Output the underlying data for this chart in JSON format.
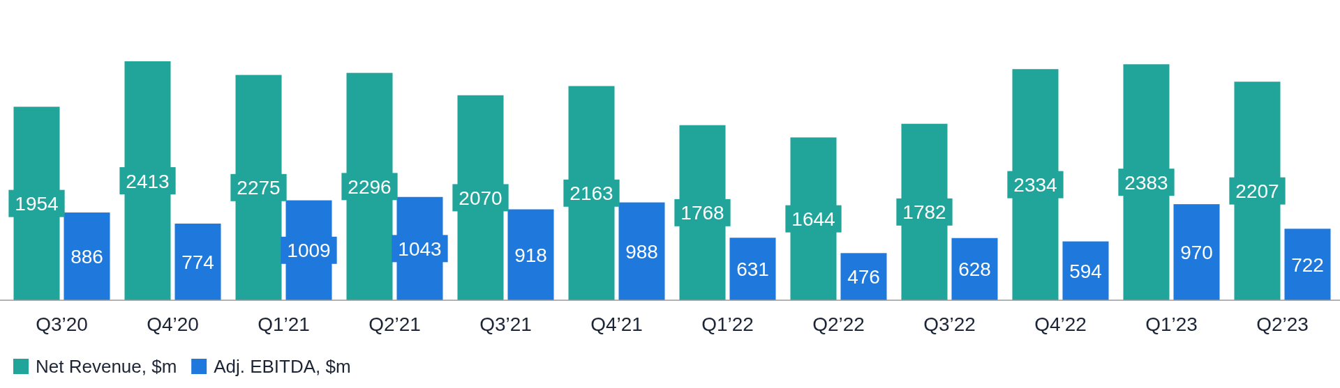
{
  "chart_data": {
    "type": "bar",
    "categories": [
      "Q3’20",
      "Q4’20",
      "Q1’21",
      "Q2’21",
      "Q3’21",
      "Q4’21",
      "Q1’22",
      "Q2’22",
      "Q3’22",
      "Q4’22",
      "Q1’23",
      "Q2’23"
    ],
    "series": [
      {
        "name": "Net Revenue, $m",
        "color": "#21a59b",
        "values": [
          1954,
          2413,
          2275,
          2296,
          2070,
          2163,
          1768,
          1644,
          1782,
          2334,
          2383,
          2207
        ]
      },
      {
        "name": "Adj. EBITDA, $m",
        "color": "#1f78dc",
        "values": [
          886,
          774,
          1009,
          1043,
          918,
          988,
          631,
          476,
          628,
          594,
          970,
          722
        ]
      }
    ],
    "data_labels": true,
    "tick_labels": "x",
    "legend": "bottom left"
  }
}
